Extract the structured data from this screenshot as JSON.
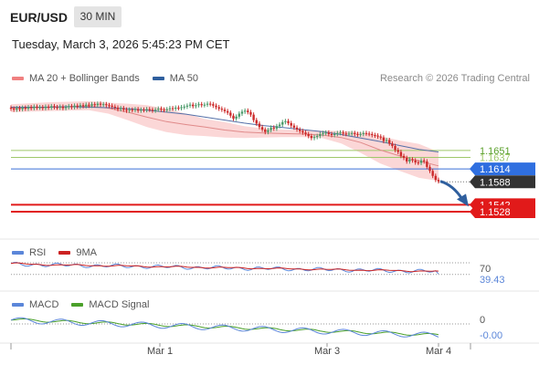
{
  "header": {
    "symbol": "EUR/USD",
    "timeframe": "30 MIN",
    "datetime": "Tuesday, March 3, 2026 5:45:23 PM CET"
  },
  "legend": {
    "ma20": {
      "label": "MA 20 + Bollinger Bands",
      "color": "#f08080"
    },
    "ma50": {
      "label": "MA 50",
      "color": "#2f5f9e"
    },
    "credit": "Research © 2026 Trading Central"
  },
  "colors": {
    "up": "#4a9a6a",
    "down": "#cc2a2a",
    "band": "#fbd3d3",
    "ma20": "#e08a8a",
    "ma50": "#5570a8",
    "support": "#e11a1a",
    "resistance": "#9fc86a",
    "pivot": "#3a6fd8",
    "rsi": "#5b86d9",
    "rsi9": "#cc2222",
    "macd": "#5b86d9",
    "macdSignal": "#4aa02a"
  },
  "chart_data": [
    {
      "type": "candlestick",
      "ylim": [
        1.1495,
        1.177
      ],
      "x_ticks": [
        "Mar 1",
        "Mar 3",
        "Mar 4"
      ],
      "levels": [
        {
          "value": 1.1651,
          "label": "1.1651",
          "kind": "resistance"
        },
        {
          "value": 1.1637,
          "label": "1.1637",
          "kind": "resistance"
        },
        {
          "value": 1.1614,
          "label": "1.1614",
          "kind": "pivot"
        },
        {
          "value": 1.1588,
          "label": "1.1588",
          "kind": "last"
        },
        {
          "value": 1.1542,
          "label": "1.1542",
          "kind": "support"
        },
        {
          "value": 1.1528,
          "label": "1.1528",
          "kind": "support"
        }
      ],
      "close": [
        1.1735,
        1.1733,
        1.1736,
        1.1734,
        1.1737,
        1.1735,
        1.1738,
        1.1736,
        1.1739,
        1.1737,
        1.1738,
        1.1736,
        1.1739,
        1.1737,
        1.174,
        1.1738,
        1.1737,
        1.1739,
        1.1736,
        1.1738,
        1.174,
        1.1738,
        1.1741,
        1.1739,
        1.1742,
        1.174,
        1.1743,
        1.1741,
        1.1744,
        1.1742,
        1.1745,
        1.1743,
        1.1744,
        1.1742,
        1.1741,
        1.1739,
        1.1737,
        1.1734,
        1.1736,
        1.1733,
        1.1731,
        1.1733,
        1.1732,
        1.1734,
        1.1731,
        1.1733,
        1.1732,
        1.1734,
        1.1733,
        1.1731,
        1.1733,
        1.1735,
        1.1733,
        1.1732,
        1.1734,
        1.1736,
        1.1735,
        1.1737,
        1.1736,
        1.1738,
        1.1739,
        1.1741,
        1.1743,
        1.174,
        1.1742,
        1.1744,
        1.1742,
        1.1743,
        1.1745,
        1.1744,
        1.1741,
        1.1738,
        1.1735,
        1.1733,
        1.173,
        1.1727,
        1.1721,
        1.1715,
        1.1719,
        1.1725,
        1.1729,
        1.1731,
        1.1728,
        1.1723,
        1.1712,
        1.1705,
        1.1698,
        1.1693,
        1.1688,
        1.1692,
        1.1697,
        1.1695,
        1.17,
        1.1703,
        1.1708,
        1.171,
        1.1706,
        1.1701,
        1.1697,
        1.1693,
        1.169,
        1.1687,
        1.1684,
        1.168,
        1.1676,
        1.1678,
        1.168,
        1.1684,
        1.1686,
        1.1687,
        1.1684,
        1.1682,
        1.1684,
        1.1686,
        1.1687,
        1.1685,
        1.1684,
        1.1685,
        1.1686,
        1.1684,
        1.1683,
        1.1684,
        1.1686,
        1.1685,
        1.1684,
        1.1682,
        1.1681,
        1.1679,
        1.1677,
        1.167,
        1.1672,
        1.1665,
        1.166,
        1.1652,
        1.1648,
        1.164,
        1.1636,
        1.1629,
        1.1633,
        1.1631,
        1.1627,
        1.1626,
        1.1631,
        1.1629,
        1.1618,
        1.161,
        1.16,
        1.1592,
        1.1589
      ],
      "bollinger": {
        "ma20": [
          1.1736,
          1.1737,
          1.1738,
          1.1739,
          1.174,
          1.1736,
          1.1728,
          1.1718,
          1.1709,
          1.1703,
          1.1698,
          1.1692,
          1.1688,
          1.1686,
          1.1685,
          1.1684,
          1.1682,
          1.1677,
          1.1667,
          1.1652,
          1.164,
          1.163,
          1.162
        ],
        "upper_sample": [
          1.1744,
          1.1746,
          1.1748,
          1.1749,
          1.175,
          1.1747,
          1.1745,
          1.1742,
          1.1735,
          1.1725,
          1.1714,
          1.1708,
          1.17,
          1.1695,
          1.1693,
          1.1692,
          1.1691,
          1.169,
          1.1688,
          1.168,
          1.1671,
          1.1664,
          1.1648
        ],
        "lower_sample": [
          1.1728,
          1.1729,
          1.173,
          1.1731,
          1.1732,
          1.1725,
          1.1712,
          1.1698,
          1.1688,
          1.1682,
          1.168,
          1.1677,
          1.1676,
          1.1677,
          1.1678,
          1.1678,
          1.1676,
          1.1665,
          1.1646,
          1.1625,
          1.161,
          1.1596,
          1.159
        ]
      },
      "ma50": [
        1.1738,
        1.1738,
        1.1738,
        1.1739,
        1.1738,
        1.1737,
        1.1735,
        1.1732,
        1.1728,
        1.1724,
        1.1718,
        1.1712,
        1.1706,
        1.1701,
        1.1697,
        1.1693,
        1.1689,
        1.1683,
        1.1676,
        1.1669,
        1.1661,
        1.1653,
        1.1648
      ]
    },
    {
      "type": "line",
      "name": "RSI",
      "panel": "rsi",
      "series": [
        {
          "name": "RSI",
          "last": 39.43
        },
        {
          "name": "9MA"
        }
      ],
      "level": 70,
      "labels": [
        "70",
        "39.43"
      ]
    },
    {
      "type": "line",
      "name": "MACD",
      "panel": "macd",
      "series": [
        {
          "name": "MACD"
        },
        {
          "name": "MACD Signal"
        }
      ],
      "level": 0,
      "labels": [
        "0",
        "-0.00"
      ]
    }
  ],
  "panels": {
    "rsi": {
      "label": "RSI",
      "ma_label": "9MA"
    },
    "macd": {
      "label": "MACD",
      "signal_label": "MACD Signal"
    }
  }
}
